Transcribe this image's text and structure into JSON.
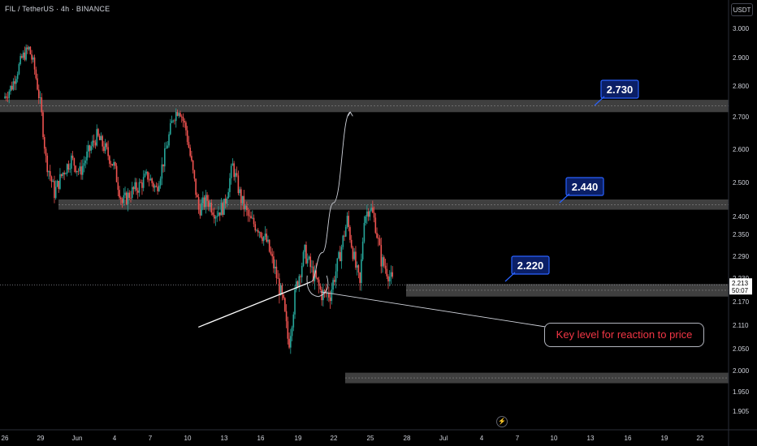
{
  "header": {
    "title": "FIL / TetherUS · 4h · BINANCE",
    "unit": "USDT"
  },
  "note": "Key level for reaction to price",
  "icons": {
    "bolt": "lightning-icon"
  },
  "colors": {
    "up": "#26a69a",
    "down": "#ef5350",
    "zone": "#4a4a4a",
    "tag_bg": "#0b1f66",
    "tag_border": "#2962ff",
    "note_text": "#f23645"
  },
  "chart_data": {
    "type": "candlestick",
    "symbol": "FIL/USDT",
    "timeframe": "4h",
    "ylim": [
      1.86,
      3.06
    ],
    "y_ticks": [
      3.0,
      2.9,
      2.8,
      2.7,
      2.6,
      2.5,
      2.4,
      2.35,
      2.29,
      2.23,
      2.17,
      2.11,
      2.05,
      2.0,
      1.95,
      1.905
    ],
    "y_tick_labels": [
      "3.000",
      "2.900",
      "2.800",
      "2.700",
      "2.600",
      "2.500",
      "2.400",
      "2.350",
      "2.290",
      "2.230",
      "2.170",
      "2.110",
      "2.050",
      "2.000",
      "1.950",
      "1.905"
    ],
    "x_tick_labels": [
      "26",
      "29",
      "Jun",
      "4",
      "7",
      "10",
      "13",
      "16",
      "19",
      "22",
      "25",
      "28",
      "Jul",
      "4",
      "7",
      "10",
      "13",
      "16",
      "19",
      "22"
    ],
    "price_label": {
      "value": 2.213,
      "text": "2.213",
      "countdown": "50:07"
    },
    "zones": [
      {
        "low": 2.715,
        "high": 2.755
      },
      {
        "low": 2.42,
        "high": 2.45
      },
      {
        "low": 2.183,
        "high": 2.215
      },
      {
        "low": 1.97,
        "high": 1.995
      }
    ],
    "targets": [
      {
        "value": 2.73,
        "text": "2.730"
      },
      {
        "value": 2.44,
        "text": "2.440"
      },
      {
        "value": 2.22,
        "text": "2.220"
      }
    ],
    "trendline": {
      "from": {
        "day": 22.8,
        "price": 2.105
      },
      "to": {
        "day": 36.0,
        "price": 2.22
      }
    },
    "projection": [
      {
        "day": 36.0,
        "price": 2.22
      },
      {
        "day": 37.4,
        "price": 2.3
      },
      {
        "day": 38.7,
        "price": 2.44
      },
      {
        "day": 40.7,
        "price": 2.715
      }
    ],
    "path": [
      [
        0,
        2.76
      ],
      [
        1,
        2.8
      ],
      [
        2.2,
        2.9
      ],
      [
        3,
        2.93
      ],
      [
        3.6,
        2.87
      ],
      [
        4.4,
        2.73
      ],
      [
        5,
        2.57
      ],
      [
        6,
        2.47
      ],
      [
        7,
        2.53
      ],
      [
        8,
        2.57
      ],
      [
        9,
        2.53
      ],
      [
        10,
        2.59
      ],
      [
        11,
        2.64
      ],
      [
        12,
        2.6
      ],
      [
        13,
        2.55
      ],
      [
        14,
        2.44
      ],
      [
        15,
        2.47
      ],
      [
        16,
        2.49
      ],
      [
        17,
        2.52
      ],
      [
        18,
        2.48
      ],
      [
        19,
        2.58
      ],
      [
        20,
        2.7
      ],
      [
        20.7,
        2.73
      ],
      [
        21.5,
        2.66
      ],
      [
        22,
        2.58
      ],
      [
        23,
        2.42
      ],
      [
        24,
        2.45
      ],
      [
        25,
        2.41
      ],
      [
        26,
        2.43
      ],
      [
        27,
        2.55
      ],
      [
        28,
        2.45
      ],
      [
        29,
        2.39
      ],
      [
        30,
        2.37
      ],
      [
        31,
        2.33
      ],
      [
        32,
        2.25
      ],
      [
        33,
        2.16
      ],
      [
        33.6,
        2.06
      ],
      [
        34.5,
        2.21
      ],
      [
        35.5,
        2.3
      ],
      [
        36.5,
        2.24
      ],
      [
        37.5,
        2.19
      ],
      [
        38.5,
        2.19
      ],
      [
        39.5,
        2.28
      ],
      [
        40.5,
        2.39
      ],
      [
        41.5,
        2.26
      ],
      [
        42,
        2.21
      ],
      [
        42.5,
        2.4
      ],
      [
        43.2,
        2.43
      ],
      [
        43.8,
        2.38
      ],
      [
        44.5,
        2.28
      ],
      [
        45.2,
        2.25
      ],
      [
        45.8,
        2.22
      ]
    ]
  }
}
